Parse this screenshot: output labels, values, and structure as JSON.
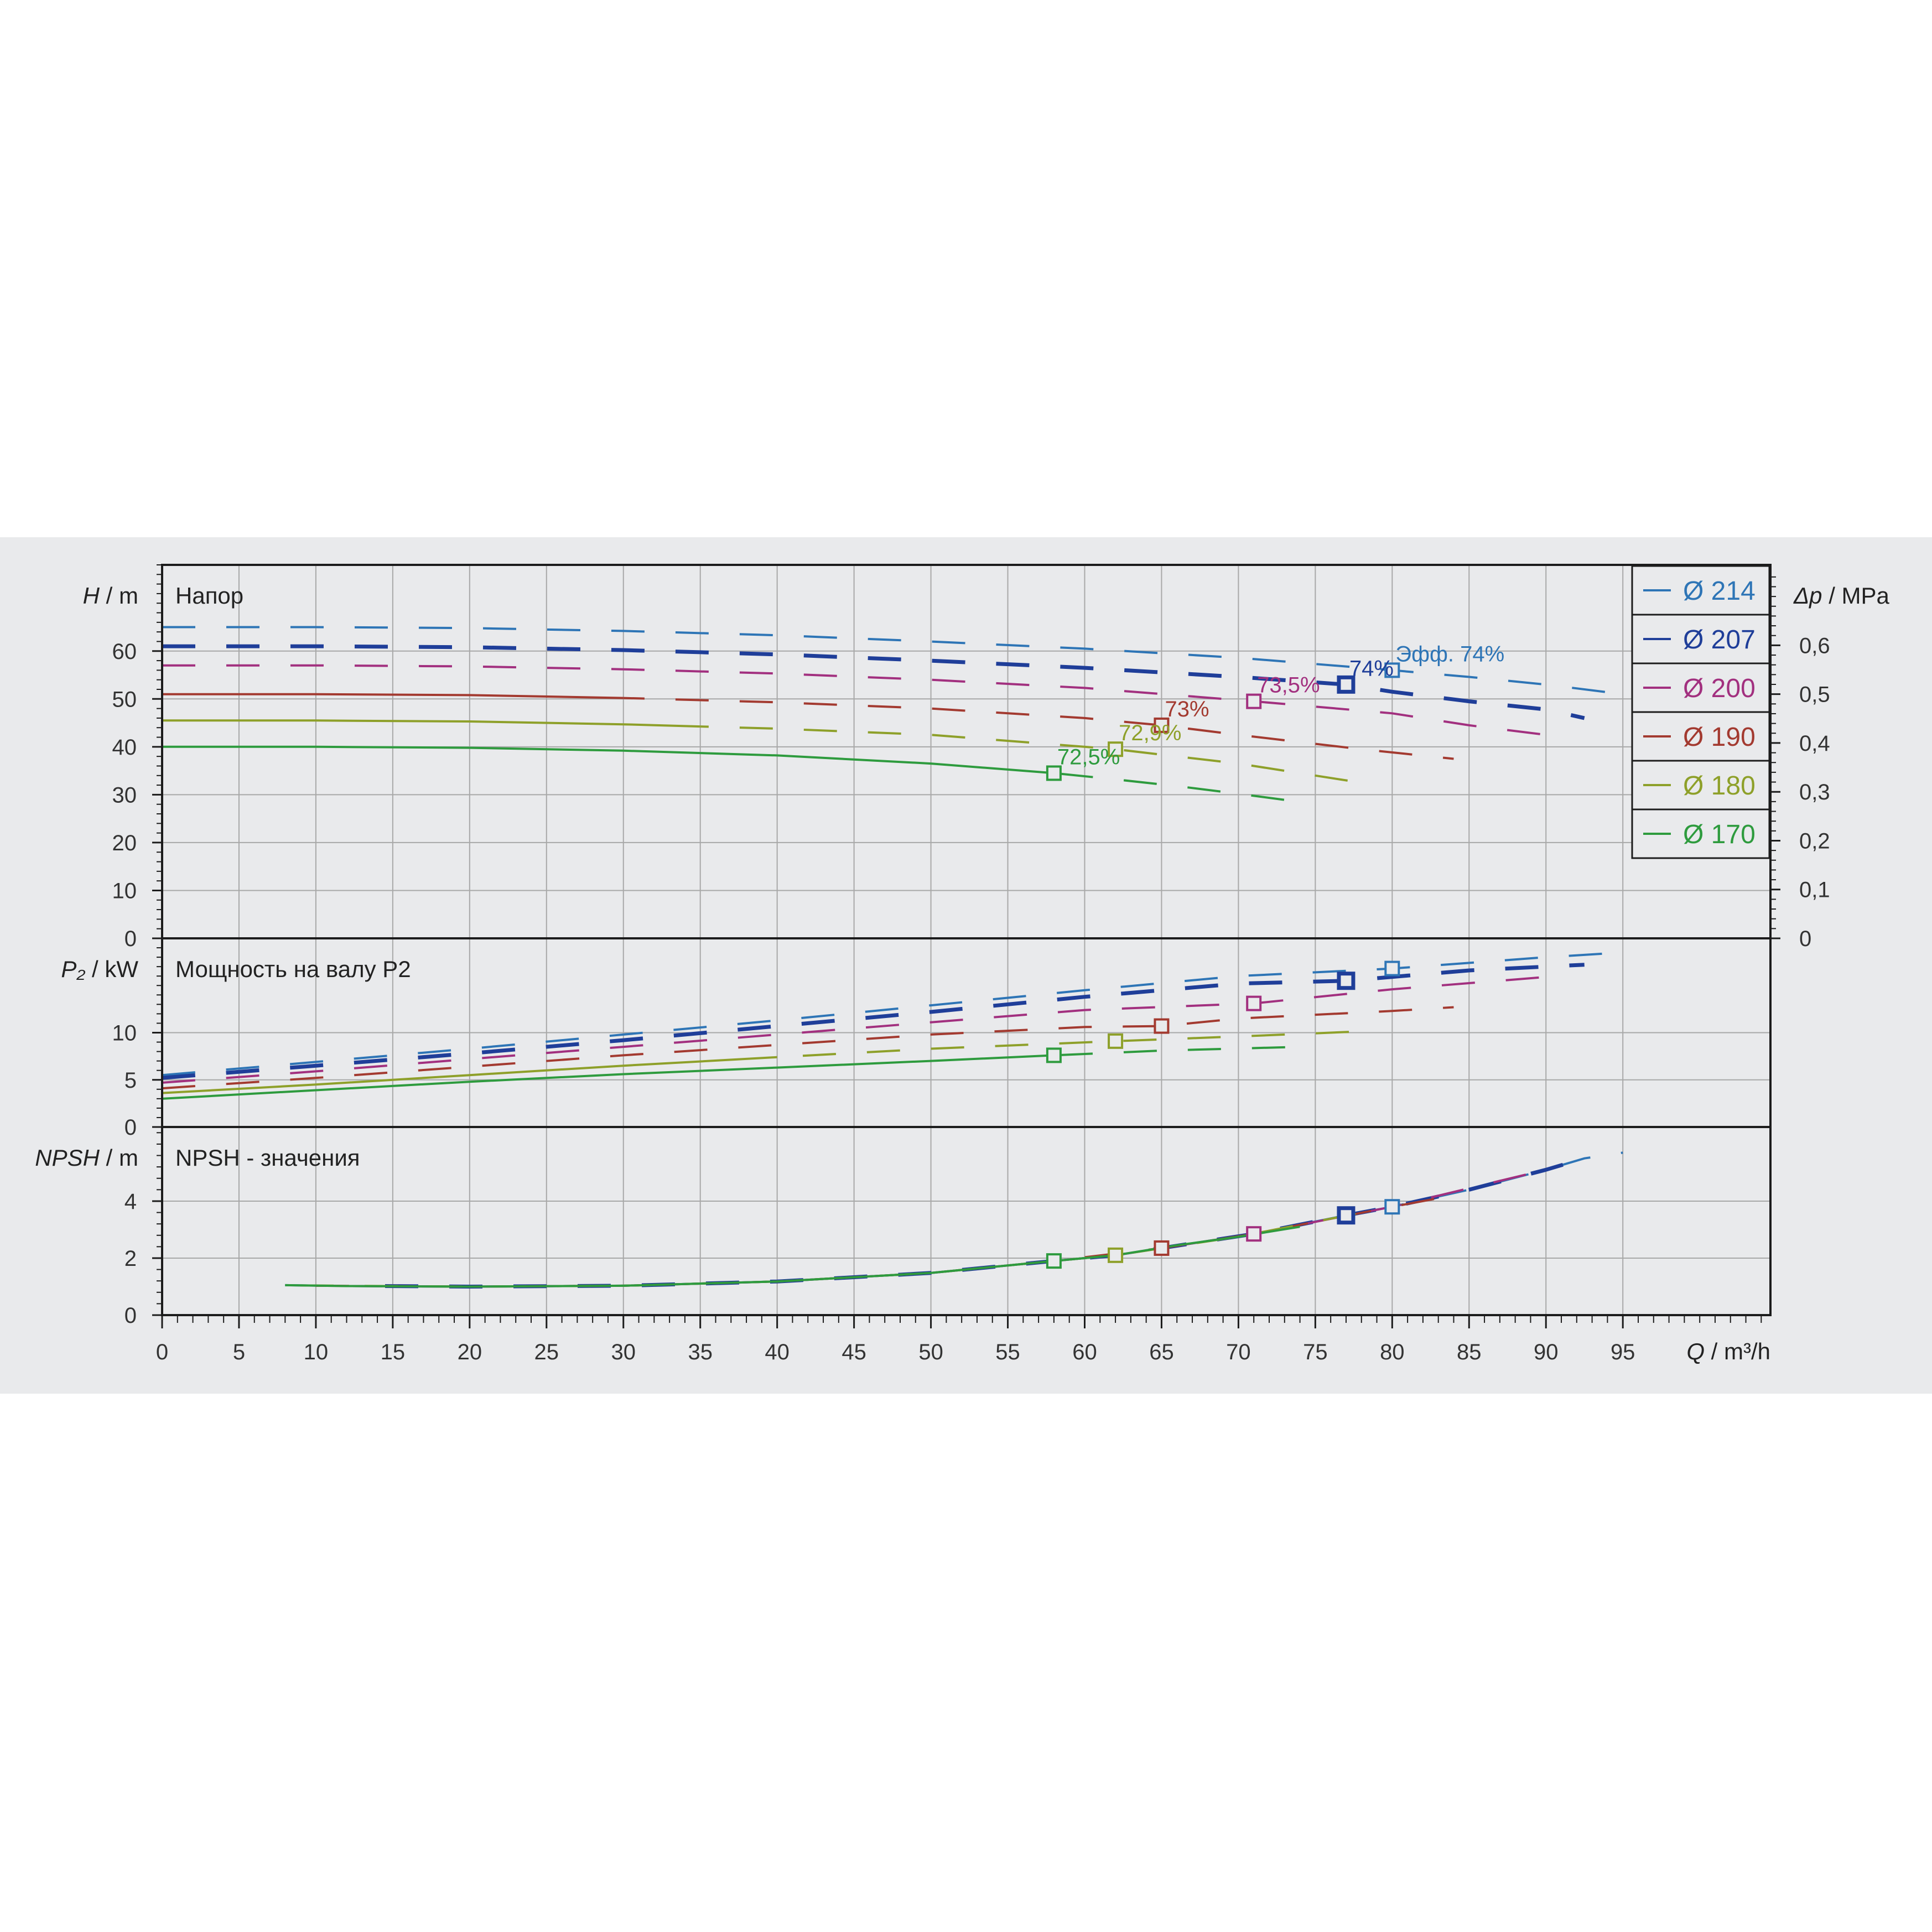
{
  "chart_data": {
    "type": "line",
    "legend": {
      "placement": "top-right",
      "entries": [
        {
          "label": "Ø 214",
          "color": "#2e75b6"
        },
        {
          "label": "Ø 207",
          "color": "#1f3e99"
        },
        {
          "label": "Ø 200",
          "color": "#a2307f"
        },
        {
          "label": "Ø 190",
          "color": "#a33a30"
        },
        {
          "label": "Ø 180",
          "color": "#8ea02a"
        },
        {
          "label": "Ø 170",
          "color": "#2e9b3e"
        }
      ]
    },
    "x_axis": {
      "label_italic": "Q",
      "label_unit": " / m³/h",
      "range": [
        0,
        104.6
      ],
      "ticks": [
        0,
        5,
        10,
        15,
        20,
        25,
        30,
        35,
        40,
        45,
        50,
        55,
        60,
        65,
        70,
        75,
        80,
        85,
        90,
        95
      ],
      "tick_labels": [
        "0",
        "5",
        "10",
        "15",
        "20",
        "25",
        "30",
        "35",
        "40",
        "45",
        "50",
        "55",
        "60",
        "65",
        "70",
        "75",
        "80",
        "85",
        "90",
        "95"
      ]
    },
    "grid": true,
    "panels": [
      {
        "id": "head",
        "title": "Напор",
        "ylabel_italic": "H",
        "ylabel_unit": " / m",
        "ylim": [
          0,
          78
        ],
        "yticks": [
          0,
          10,
          20,
          30,
          40,
          50,
          60
        ],
        "ytick_labels": [
          "0",
          "10",
          "20",
          "30",
          "40",
          "50",
          "60"
        ],
        "right_axis": {
          "label_italic": "Δp",
          "label_unit": " / MPa",
          "ticks": [
            0,
            0.1,
            0.2,
            0.3,
            0.4,
            0.5,
            0.6
          ],
          "tick_labels": [
            "0",
            "0,1",
            "0,2",
            "0,3",
            "0,4",
            "0,5",
            "0,6"
          ]
        },
        "series": [
          {
            "name": "Ø 214",
            "color": "#2e75b6",
            "solid_until": 0,
            "x": [
              0,
              10,
              20,
              30,
              40,
              50,
              60,
              70,
              80,
              85,
              90,
              95
            ],
            "y": [
              65,
              65,
              64.8,
              64.2,
              63.3,
              62,
              60.5,
              58.6,
              56,
              54.6,
              53,
              51
            ]
          },
          {
            "name": "Ø 207",
            "color": "#1f3e99",
            "solid_until": 0,
            "x": [
              0,
              10,
              20,
              30,
              40,
              50,
              60,
              70,
              77,
              80,
              85,
              90,
              92.5
            ],
            "y": [
              61,
              61,
              60.8,
              60.2,
              59.3,
              58,
              56.5,
              54.6,
              53,
              51.5,
              49.5,
              47.8,
              46
            ]
          },
          {
            "name": "Ø 200",
            "color": "#a2307f",
            "solid_until": 0,
            "x": [
              0,
              10,
              20,
              30,
              40,
              50,
              60,
              71,
              80,
              85,
              90
            ],
            "y": [
              57,
              57,
              56.8,
              56.2,
              55.3,
              54,
              52.3,
              49.5,
              47,
              44.5,
              42.5
            ]
          },
          {
            "name": "Ø 190",
            "color": "#a33a30",
            "solid_until": 30,
            "x": [
              0,
              10,
              20,
              30,
              40,
              50,
              60,
              65,
              70,
              78,
              84
            ],
            "y": [
              51,
              51,
              50.8,
              50.2,
              49.3,
              48,
              46,
              44.5,
              42.5,
              39.5,
              37.5
            ]
          },
          {
            "name": "Ø 180",
            "color": "#8ea02a",
            "solid_until": 35,
            "x": [
              0,
              10,
              20,
              30,
              40,
              50,
              62,
              66,
              70,
              75,
              79
            ],
            "y": [
              45.5,
              45.5,
              45.3,
              44.7,
              43.8,
              42.5,
              39.5,
              38,
              36.5,
              34,
              32
            ]
          },
          {
            "name": "Ø 170",
            "color": "#2e9b3e",
            "solid_until": 58,
            "x": [
              0,
              10,
              20,
              30,
              40,
              50,
              58,
              62,
              66,
              70,
              74
            ],
            "y": [
              40,
              40,
              39.8,
              39.2,
              38.2,
              36.5,
              34.5,
              33.2,
              31.8,
              30.2,
              28.5
            ]
          }
        ],
        "points": [
          {
            "series": "Ø 214",
            "x": 80,
            "y": 56,
            "label": "Эфф.  74%"
          },
          {
            "series": "Ø 207",
            "x": 77,
            "y": 53,
            "label": "74%"
          },
          {
            "series": "Ø 200",
            "x": 71,
            "y": 49.5,
            "label": "73,5%"
          },
          {
            "series": "Ø 190",
            "x": 65,
            "y": 44.5,
            "label": "73%"
          },
          {
            "series": "Ø 180",
            "x": 62,
            "y": 39.5,
            "label": "72,9%"
          },
          {
            "series": "Ø 170",
            "x": 58,
            "y": 34.5,
            "label": "72,5%"
          }
        ]
      },
      {
        "id": "power",
        "title": "Мощность на валу P2",
        "ylabel_italic": "P₂",
        "ylabel_unit": " / kW",
        "ylim": [
          0,
          20
        ],
        "yticks": [
          0,
          5,
          10
        ],
        "ytick_labels": [
          "0",
          "5",
          "10"
        ],
        "series": [
          {
            "name": "Ø 214",
            "color": "#2e75b6",
            "solid_until": 0,
            "x": [
              0,
              10,
              20,
              30,
              40,
              50,
              60,
              70,
              80,
              90,
              95
            ],
            "y": [
              5.5,
              6.9,
              8.3,
              9.8,
              11.3,
              12.9,
              14.5,
              16,
              16.8,
              18,
              18.5
            ]
          },
          {
            "name": "Ø 207",
            "color": "#1f3e99",
            "solid_until": 0,
            "x": [
              0,
              10,
              20,
              30,
              40,
              50,
              60,
              70,
              77,
              85,
              92.5
            ],
            "y": [
              5.2,
              6.5,
              7.8,
              9.2,
              10.7,
              12.2,
              13.8,
              15.2,
              15.5,
              16.6,
              17.2
            ]
          },
          {
            "name": "Ø 200",
            "color": "#a2307f",
            "solid_until": 0,
            "x": [
              0,
              10,
              20,
              30,
              40,
              50,
              60,
              71,
              80,
              90
            ],
            "y": [
              4.7,
              5.9,
              7.2,
              8.5,
              9.8,
              11.1,
              12.4,
              13.1,
              14.6,
              15.9
            ]
          },
          {
            "name": "Ø 190",
            "color": "#a33a30",
            "solid_until": 0,
            "x": [
              0,
              10,
              20,
              30,
              40,
              50,
              60,
              65,
              70,
              80,
              84
            ],
            "y": [
              4.1,
              5.2,
              6.4,
              7.6,
              8.7,
              9.8,
              10.6,
              10.7,
              11.5,
              12.3,
              12.7
            ]
          },
          {
            "name": "Ø 180",
            "color": "#8ea02a",
            "solid_until": 40,
            "x": [
              0,
              10,
              20,
              30,
              40,
              50,
              62,
              70,
              79
            ],
            "y": [
              3.6,
              4.5,
              5.5,
              6.5,
              7.4,
              8.3,
              9.1,
              9.6,
              10.2
            ]
          },
          {
            "name": "Ø 170",
            "color": "#2e9b3e",
            "solid_until": 58,
            "x": [
              0,
              10,
              20,
              30,
              40,
              50,
              58,
              65,
              74
            ],
            "y": [
              3,
              3.9,
              4.8,
              5.6,
              6.3,
              7,
              7.6,
              8.1,
              8.5
            ]
          }
        ],
        "points": [
          {
            "series": "Ø 214",
            "x": 80,
            "y": 16.8
          },
          {
            "series": "Ø 207",
            "x": 77,
            "y": 15.5
          },
          {
            "series": "Ø 200",
            "x": 71,
            "y": 13.1
          },
          {
            "series": "Ø 190",
            "x": 65,
            "y": 10.7
          },
          {
            "series": "Ø 180",
            "x": 62,
            "y": 9.1
          },
          {
            "series": "Ø 170",
            "x": 58,
            "y": 7.6
          }
        ]
      },
      {
        "id": "npsh",
        "title": "NPSH - значения",
        "ylabel_italic": "NPSH",
        "ylabel_unit": " / m",
        "ylim": [
          0,
          6.6
        ],
        "yticks": [
          0,
          2,
          4
        ],
        "ytick_labels": [
          "0",
          "2",
          "4"
        ],
        "series": [
          {
            "name": "Ø 214",
            "color": "#2e75b6",
            "solid_until": 0,
            "x": [
              8,
              12,
              20,
              30,
              40,
              50,
              58,
              62,
              65,
              71,
              77,
              80,
              85,
              90,
              92.5,
              95
            ],
            "y": [
              1.05,
              1.02,
              1,
              1.03,
              1.18,
              1.48,
              1.9,
              2.1,
              2.35,
              2.85,
              3.5,
              3.8,
              4.4,
              5.1,
              5.5,
              5.7
            ]
          },
          {
            "name": "Ø 207",
            "color": "#1f3e99",
            "solid_until": 0,
            "x": [
              14.5,
              20,
              30,
              40,
              50,
              58,
              62,
              65,
              71,
              77,
              80,
              85,
              90,
              92.5
            ],
            "y": [
              1.02,
              1,
              1.03,
              1.18,
              1.48,
              1.9,
              2.1,
              2.35,
              2.85,
              3.5,
              3.8,
              4.4,
              5.1,
              5.5
            ]
          },
          {
            "name": "Ø 200",
            "color": "#a2307f",
            "solid_until": 0,
            "x": [
              12,
              20,
              30,
              40,
              50,
              58,
              62,
              65,
              71,
              80,
              90
            ],
            "y": [
              1.02,
              1,
              1.03,
              1.18,
              1.48,
              1.9,
              2.1,
              2.35,
              2.85,
              3.8,
              5.1
            ]
          },
          {
            "name": "Ø 190",
            "color": "#a33a30",
            "solid_until": 0,
            "x": [
              10,
              20,
              30,
              40,
              50,
              58,
              65,
              71,
              80,
              84
            ],
            "y": [
              1.03,
              1,
              1.03,
              1.18,
              1.48,
              1.9,
              2.35,
              2.85,
              3.8,
              4.2
            ]
          },
          {
            "name": "Ø 180",
            "color": "#8ea02a",
            "solid_until": 0,
            "x": [
              9,
              20,
              30,
              40,
              50,
              58,
              62,
              70,
              79
            ],
            "y": [
              1.04,
              1,
              1.03,
              1.18,
              1.48,
              1.9,
              2.1,
              2.75,
              3.7
            ]
          },
          {
            "name": "Ø 170",
            "color": "#2e9b3e",
            "solid_until": 74,
            "x": [
              8,
              12,
              20,
              30,
              40,
              50,
              58,
              62,
              66,
              70,
              74
            ],
            "y": [
              1.05,
              1.02,
              1,
              1.03,
              1.18,
              1.48,
              1.9,
              2.1,
              2.45,
              2.75,
              3.1
            ]
          }
        ],
        "points": [
          {
            "series": "Ø 214",
            "x": 80,
            "y": 3.8
          },
          {
            "series": "Ø 207",
            "x": 77,
            "y": 3.5
          },
          {
            "series": "Ø 200",
            "x": 71,
            "y": 2.85
          },
          {
            "series": "Ø 190",
            "x": 65,
            "y": 2.35
          },
          {
            "series": "Ø 180",
            "x": 62,
            "y": 2.1
          },
          {
            "series": "Ø 170",
            "x": 58,
            "y": 1.9
          }
        ]
      }
    ]
  }
}
